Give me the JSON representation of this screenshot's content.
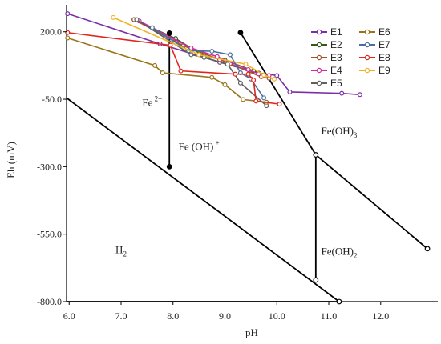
{
  "chart_data": {
    "type": "line",
    "xlabel": "pH",
    "ylabel": "Eh (mV)",
    "xlim": [
      5.95,
      13.1
    ],
    "ylim": [
      -800,
      300
    ],
    "x_ticks": [
      "6.0",
      "7.0",
      "8.0",
      "9.0",
      "10.0",
      "11.0",
      "12.0"
    ],
    "x_tick_values": [
      6.0,
      7.0,
      8.0,
      9.0,
      10.0,
      11.0,
      12.0
    ],
    "y_ticks": [
      "200.0",
      "-50.0",
      "-300.0",
      "-550.0",
      "-800.0"
    ],
    "y_tick_values": [
      200,
      -50,
      -300,
      -550,
      -800
    ],
    "grid": false,
    "legend_position": "top-right",
    "legend_columns": 2,
    "boundaries": [
      {
        "points": [
          [
            5.95,
            -45
          ],
          [
            11.2,
            -800
          ]
        ]
      },
      {
        "points": [
          [
            7.93,
            195
          ],
          [
            7.93,
            -300
          ]
        ]
      },
      {
        "points": [
          [
            9.3,
            197
          ],
          [
            10.75,
            -256
          ]
        ]
      },
      {
        "points": [
          [
            10.75,
            -256
          ],
          [
            10.75,
            -720
          ]
        ]
      },
      {
        "points": [
          [
            10.75,
            -256
          ],
          [
            12.9,
            -604
          ]
        ]
      },
      {
        "points": [
          [
            5.95,
            -800
          ],
          [
            11.2,
            -800
          ]
        ]
      }
    ],
    "boundary_points": [
      [
        7.93,
        195
      ],
      [
        7.93,
        -300
      ],
      [
        9.3,
        197
      ],
      [
        10.75,
        -256
      ],
      [
        10.75,
        -720
      ],
      [
        12.9,
        -604
      ],
      [
        11.2,
        -800
      ]
    ],
    "region_labels": [
      {
        "text": "Fe",
        "sup": "2+",
        "x": 7.6,
        "y": -75
      },
      {
        "text": "Fe (OH)",
        "sup": "+",
        "x": 8.5,
        "y": -238
      },
      {
        "text": "Fe(OH)",
        "sub": "3",
        "x": 11.2,
        "y": -180
      },
      {
        "text": "H",
        "sub": "2",
        "x": 7.0,
        "y": -620
      },
      {
        "text": "Fe(OH)",
        "sub": "2",
        "x": 11.2,
        "y": -626
      }
    ],
    "series": [
      {
        "name": "E1",
        "color": "#7b2fa6",
        "marker": "circle",
        "x": [
          5.97,
          7.75,
          8.9,
          9.65,
          10.0,
          10.25,
          11.25,
          11.6
        ],
        "y": [
          267,
          155,
          87,
          47,
          38,
          -23,
          -28,
          -33
        ]
      },
      {
        "name": "E2",
        "color": "#335a1f",
        "marker": "circle",
        "x": [
          7.25,
          8.05,
          8.6,
          9.0,
          9.55,
          9.75
        ],
        "y": [
          245,
          175,
          110,
          95,
          55,
          40
        ]
      },
      {
        "name": "E3",
        "color": "#a0522d",
        "marker": "circle",
        "x": [
          7.25,
          8.2,
          8.9,
          9.1,
          9.7,
          9.85
        ],
        "y": [
          245,
          148,
          97,
          82,
          33,
          28
        ]
      },
      {
        "name": "E4",
        "color": "#cc2d9c",
        "marker": "circle",
        "x": [
          7.35,
          8.35,
          8.85,
          9.45,
          9.65,
          9.85
        ],
        "y": [
          240,
          140,
          108,
          60,
          44,
          38
        ]
      },
      {
        "name": "E5",
        "color": "#606060",
        "marker": "circle",
        "x": [
          7.3,
          8.35,
          8.6,
          9.05,
          9.3,
          9.8
        ],
        "y": [
          245,
          115,
          105,
          80,
          10,
          -74
        ]
      },
      {
        "name": "E6",
        "color": "#9a7418",
        "marker": "circle",
        "x": [
          5.97,
          7.65,
          7.8,
          8.75,
          9.0,
          9.35,
          9.8
        ],
        "y": [
          177,
          75,
          48,
          31,
          4,
          -51,
          -61
        ]
      },
      {
        "name": "E7",
        "color": "#4a6f9c",
        "marker": "circle",
        "x": [
          7.6,
          8.3,
          8.75,
          9.1,
          9.3,
          9.5,
          9.75
        ],
        "y": [
          215,
          130,
          128,
          115,
          48,
          25,
          -45
        ]
      },
      {
        "name": "E8",
        "color": "#e0261c",
        "marker": "circle",
        "x": [
          5.97,
          7.95,
          8.15,
          9.2,
          9.45,
          9.55,
          9.6,
          10.05
        ],
        "y": [
          197,
          150,
          55,
          43,
          43,
          21,
          -57,
          -68
        ]
      },
      {
        "name": "E9",
        "color": "#f0b324",
        "marker": "circle",
        "x": [
          6.85,
          8.5,
          9.4,
          9.75,
          9.95
        ],
        "y": [
          253,
          115,
          80,
          40,
          25
        ]
      }
    ]
  }
}
